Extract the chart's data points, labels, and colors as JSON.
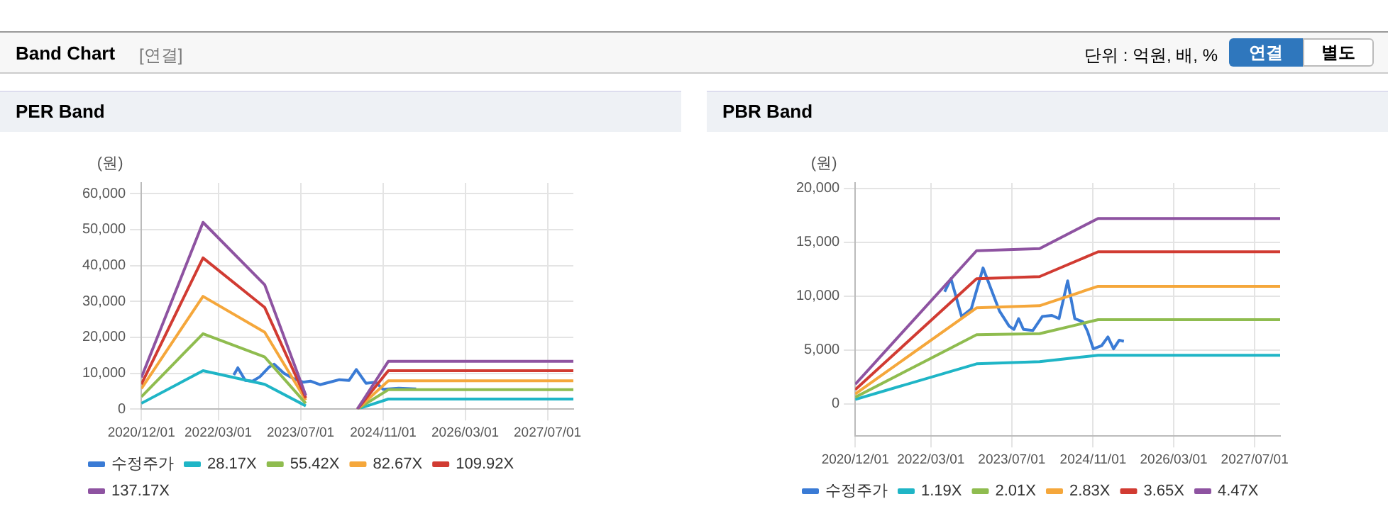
{
  "chart_data": [
    {
      "type": "other",
      "title": "Band Chart",
      "subtitle": "[연결]",
      "annotations": [
        "단위 : 억원, 배, %",
        "연결",
        "별도"
      ]
    },
    {
      "type": "line",
      "title": "PER Band",
      "ylabel": "(원)",
      "marker": "none",
      "grid": true,
      "legend": "bottom",
      "xlim": [
        "2020-12-01",
        "2027-12-01"
      ],
      "xticks": [
        {
          "value": "2020-12-01",
          "label": "2020/12/01"
        },
        {
          "value": "2022-03-01",
          "label": "2022/03/01"
        },
        {
          "value": "2023-07-01",
          "label": "2023/07/01"
        },
        {
          "value": "2024-11-01",
          "label": "2024/11/01"
        },
        {
          "value": "2026-03-01",
          "label": "2026/03/01"
        },
        {
          "value": "2027-07-01",
          "label": "2027/07/01"
        }
      ],
      "ylim": [
        0,
        63000
      ],
      "yticks": [
        0,
        {
          "value": 10000,
          "label": "10,000"
        },
        {
          "value": 20000,
          "label": "20,000"
        },
        {
          "value": 30000,
          "label": "30,000"
        },
        {
          "value": 40000,
          "label": "40,000"
        },
        {
          "value": 50000,
          "label": "50,000"
        },
        {
          "value": 60000,
          "label": "60,000"
        }
      ],
      "series": [
        {
          "name": "수정주가",
          "color": "#3a7bd5",
          "x": [
            "2022-06-01",
            "2022-06-25",
            "2022-08-08",
            "2022-09-20",
            "2022-11-02",
            "2022-12-29",
            "2023-01-26",
            "2023-03-24",
            "2023-05-20",
            "2023-07-16",
            "2023-08-28",
            "2023-10-24",
            "2023-12-20",
            "2024-02-16",
            "2024-04-13",
            "2024-05-26",
            "2024-07-22",
            "2024-09-17",
            "2024-11-01",
            "2025-02-01",
            "2025-05-15"
          ],
          "values": [
            9500,
            11500,
            8000,
            7800,
            9000,
            11800,
            12500,
            10000,
            8500,
            7500,
            7800,
            6800,
            7500,
            8200,
            8000,
            11000,
            7200,
            7500,
            5500,
            5800,
            5600
          ]
        },
        {
          "name": "28.17X",
          "color": "#1fb5c6",
          "x": [
            "2020-12-01",
            "2021-12-01",
            "2022-12-01",
            "2023-08-01",
            "2024-01-01",
            "2024-06-01",
            "2024-12-01",
            "2027-12-01"
          ],
          "values": [
            1600,
            10700,
            6900,
            900,
            null,
            0,
            2800,
            2800
          ]
        },
        {
          "name": "55.42X",
          "color": "#8fbc4f",
          "x": [
            "2020-12-01",
            "2021-12-01",
            "2022-12-01",
            "2023-08-01",
            "2024-01-01",
            "2024-06-01",
            "2024-12-01",
            "2027-12-01"
          ],
          "values": [
            3400,
            21000,
            14500,
            1600,
            null,
            0,
            5400,
            5400
          ]
        },
        {
          "name": "82.67X",
          "color": "#f5a73b",
          "x": [
            "2020-12-01",
            "2021-12-01",
            "2022-12-01",
            "2023-08-01",
            "2024-01-01",
            "2024-06-01",
            "2024-12-01",
            "2027-12-01"
          ],
          "values": [
            5700,
            31400,
            21400,
            2500,
            null,
            0,
            7900,
            7900
          ]
        },
        {
          "name": "109.92X",
          "color": "#d13b32",
          "x": [
            "2020-12-01",
            "2021-12-01",
            "2022-12-01",
            "2023-08-01",
            "2024-01-01",
            "2024-06-01",
            "2024-12-01",
            "2027-12-01"
          ],
          "values": [
            6900,
            42100,
            28300,
            3100,
            null,
            0,
            10700,
            10700
          ]
        },
        {
          "name": "137.17X",
          "color": "#8e53a1",
          "x": [
            "2020-12-01",
            "2021-12-01",
            "2022-12-01",
            "2023-08-01",
            "2024-01-01",
            "2024-06-01",
            "2024-12-01",
            "2027-12-01"
          ],
          "values": [
            8800,
            52000,
            34600,
            3800,
            null,
            0,
            13300,
            13300
          ]
        }
      ]
    },
    {
      "type": "line",
      "title": "PBR Band",
      "ylabel": "(원)",
      "marker": "none",
      "grid": true,
      "legend": "bottom",
      "xlim": [
        "2020-12-01",
        "2027-12-01"
      ],
      "xticks": [
        {
          "value": "2020-12-01",
          "label": "2020/12/01"
        },
        {
          "value": "2022-03-01",
          "label": "2022/03/01"
        },
        {
          "value": "2023-07-01",
          "label": "2023/07/01"
        },
        {
          "value": "2024-11-01",
          "label": "2024/11/01"
        },
        {
          "value": "2026-03-01",
          "label": "2026/03/01"
        },
        {
          "value": "2027-07-01",
          "label": "2027/07/01"
        }
      ],
      "ylim": [
        -3000,
        20500
      ],
      "yticks": [
        0,
        {
          "value": 5000,
          "label": "5,000"
        },
        {
          "value": 10000,
          "label": "10,000"
        },
        {
          "value": 15000,
          "label": "15,000"
        },
        {
          "value": 20000,
          "label": "20,000"
        }
      ],
      "series": [
        {
          "name": "수정주가",
          "color": "#3a7bd5",
          "x": [
            "2022-05-23",
            "2022-06-30",
            "2022-09-02",
            "2022-10-30",
            "2023-01-09",
            "2023-02-20",
            "2023-04-18",
            "2023-06-15",
            "2023-07-14",
            "2023-08-11",
            "2023-09-09",
            "2023-11-05",
            "2024-01-01",
            "2024-02-27",
            "2024-04-10",
            "2024-06-01",
            "2024-07-14",
            "2024-09-01",
            "2024-09-29",
            "2024-11-02",
            "2024-12-23",
            "2025-01-29",
            "2025-03-04",
            "2025-04-07",
            "2025-05-05"
          ],
          "values": [
            10400,
            11600,
            8100,
            8800,
            12600,
            10900,
            8600,
            7200,
            6900,
            7900,
            6900,
            6800,
            8100,
            8200,
            7900,
            11400,
            7900,
            7600,
            6700,
            5100,
            5400,
            6200,
            5100,
            5900,
            5800
          ]
        },
        {
          "name": "1.19X",
          "color": "#1fb5c6",
          "x": [
            "2020-12-01",
            "2022-12-01",
            "2023-12-15",
            "2024-12-01",
            "2027-12-01"
          ],
          "values": [
            400,
            3700,
            3900,
            4500,
            4500
          ]
        },
        {
          "name": "2.01X",
          "color": "#8fbc4f",
          "x": [
            "2020-12-01",
            "2022-12-01",
            "2023-12-15",
            "2024-12-01",
            "2027-12-01"
          ],
          "values": [
            600,
            6400,
            6500,
            7800,
            7800
          ]
        },
        {
          "name": "2.83X",
          "color": "#f5a73b",
          "x": [
            "2020-12-01",
            "2022-12-01",
            "2023-12-15",
            "2024-12-01",
            "2027-12-01"
          ],
          "values": [
            900,
            8900,
            9100,
            10900,
            10900
          ]
        },
        {
          "name": "3.65X",
          "color": "#d13b32",
          "x": [
            "2020-12-01",
            "2022-12-01",
            "2023-12-15",
            "2024-12-01",
            "2027-12-01"
          ],
          "values": [
            1300,
            11600,
            11800,
            14100,
            14100
          ]
        },
        {
          "name": "4.47X",
          "color": "#8e53a1",
          "x": [
            "2020-12-01",
            "2022-12-01",
            "2023-12-15",
            "2024-12-01",
            "2027-12-01"
          ],
          "values": [
            1800,
            14200,
            14400,
            17200,
            17200
          ]
        }
      ]
    }
  ]
}
